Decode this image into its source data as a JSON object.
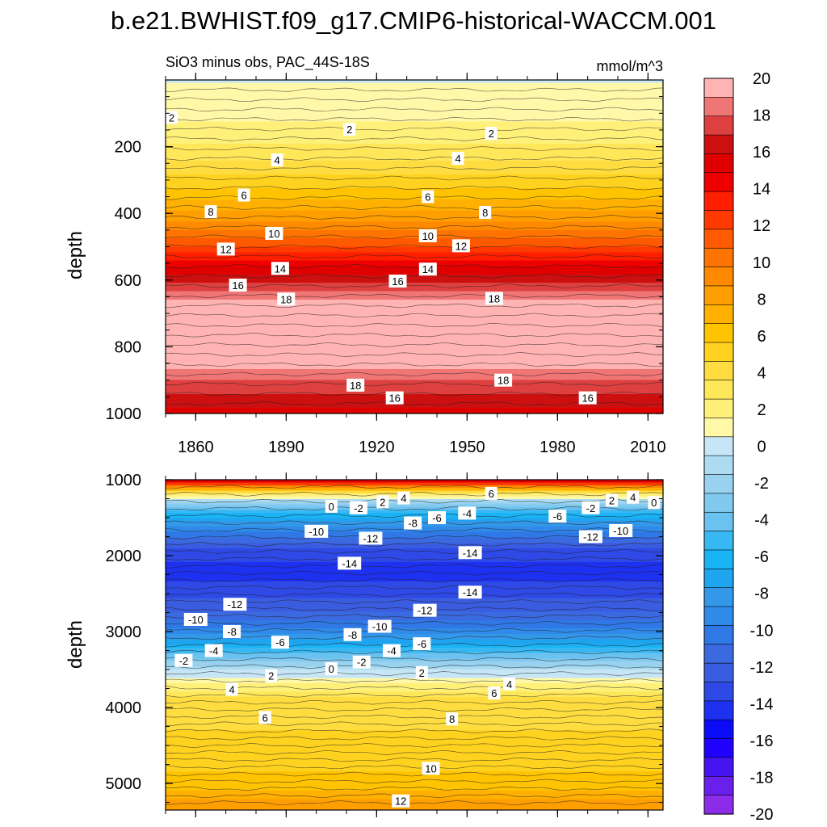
{
  "title": "b.e21.BWHIST.f09_g17.CMIP6-historical-WACCM.001",
  "subtitle_left": "SiO3 minus obs, PAC_44S-18S",
  "subtitle_right": "mmol/m^3",
  "chart_data": [
    {
      "type": "heatmap",
      "panel": "upper",
      "ylabel": "depth",
      "xlim": [
        1850,
        2015
      ],
      "ylim": [
        0,
        1000
      ],
      "y_inverted": true,
      "x_ticks": [
        1860,
        1890,
        1920,
        1950,
        1980,
        2010
      ],
      "x_tick_labels": [
        "1860",
        "1890",
        "1920",
        "1950",
        "1980",
        "2010"
      ],
      "y_ticks": [
        200,
        400,
        600,
        800,
        1000
      ],
      "y_tick_labels": [
        "200",
        "400",
        "600",
        "800",
        "1000"
      ],
      "depth_profile": [
        {
          "depth": 0,
          "value": 0.5
        },
        {
          "depth": 130,
          "value": 1.6
        },
        {
          "depth": 200,
          "value": 2.8
        },
        {
          "depth": 300,
          "value": 5
        },
        {
          "depth": 400,
          "value": 8
        },
        {
          "depth": 480,
          "value": 11
        },
        {
          "depth": 560,
          "value": 15
        },
        {
          "depth": 640,
          "value": 18.5
        },
        {
          "depth": 700,
          "value": 20.5
        },
        {
          "depth": 800,
          "value": 20.5
        },
        {
          "depth": 860,
          "value": 19
        },
        {
          "depth": 930,
          "value": 17
        },
        {
          "depth": 1000,
          "value": 15.5
        }
      ],
      "contour_labels": [
        {
          "text": "2",
          "year": 1852,
          "depth": 112
        },
        {
          "text": "2",
          "year": 1911,
          "depth": 148
        },
        {
          "text": "2",
          "year": 1958,
          "depth": 160
        },
        {
          "text": "4",
          "year": 1887,
          "depth": 240
        },
        {
          "text": "4",
          "year": 1947,
          "depth": 235
        },
        {
          "text": "6",
          "year": 1876,
          "depth": 345
        },
        {
          "text": "6",
          "year": 1937,
          "depth": 350
        },
        {
          "text": "8",
          "year": 1865,
          "depth": 395
        },
        {
          "text": "8",
          "year": 1956,
          "depth": 397
        },
        {
          "text": "10",
          "year": 1886,
          "depth": 460
        },
        {
          "text": "10",
          "year": 1937,
          "depth": 467
        },
        {
          "text": "12",
          "year": 1870,
          "depth": 507
        },
        {
          "text": "12",
          "year": 1948,
          "depth": 497
        },
        {
          "text": "14",
          "year": 1888,
          "depth": 565
        },
        {
          "text": "14",
          "year": 1937,
          "depth": 567
        },
        {
          "text": "16",
          "year": 1874,
          "depth": 615
        },
        {
          "text": "16",
          "year": 1927,
          "depth": 603
        },
        {
          "text": "18",
          "year": 1890,
          "depth": 657
        },
        {
          "text": "18",
          "year": 1959,
          "depth": 655
        },
        {
          "text": "18",
          "year": 1913,
          "depth": 915
        },
        {
          "text": "18",
          "year": 1962,
          "depth": 900
        },
        {
          "text": "16",
          "year": 1926,
          "depth": 953
        },
        {
          "text": "16",
          "year": 1990,
          "depth": 953
        }
      ]
    },
    {
      "type": "heatmap",
      "panel": "lower",
      "ylabel": "depth",
      "xlim": [
        1850,
        2015
      ],
      "ylim": [
        1000,
        5350
      ],
      "y_inverted": true,
      "y_ticks": [
        1000,
        2000,
        3000,
        4000,
        5000
      ],
      "y_tick_labels": [
        "1000",
        "2000",
        "3000",
        "4000",
        "5000"
      ],
      "depth_profile": [
        {
          "depth": 1000,
          "value": 15
        },
        {
          "depth": 1150,
          "value": 4
        },
        {
          "depth": 1300,
          "value": -3
        },
        {
          "depth": 1600,
          "value": -9
        },
        {
          "depth": 1850,
          "value": -12.5
        },
        {
          "depth": 2200,
          "value": -14.5
        },
        {
          "depth": 2700,
          "value": -12
        },
        {
          "depth": 3000,
          "value": -9
        },
        {
          "depth": 3300,
          "value": -4
        },
        {
          "depth": 3500,
          "value": -0.5
        },
        {
          "depth": 3700,
          "value": 2
        },
        {
          "depth": 3900,
          "value": 4
        },
        {
          "depth": 4500,
          "value": 5
        },
        {
          "depth": 5000,
          "value": 6
        },
        {
          "depth": 5350,
          "value": 9
        }
      ],
      "contour_labels": [
        {
          "text": "0",
          "year": 1905,
          "depth": 1350
        },
        {
          "text": "-2",
          "year": 1914,
          "depth": 1370
        },
        {
          "text": "2",
          "year": 1922,
          "depth": 1290
        },
        {
          "text": "4",
          "year": 1929,
          "depth": 1240
        },
        {
          "text": "-8",
          "year": 1932,
          "depth": 1570
        },
        {
          "text": "-6",
          "year": 1940,
          "depth": 1500
        },
        {
          "text": "-4",
          "year": 1950,
          "depth": 1440
        },
        {
          "text": "6",
          "year": 1958,
          "depth": 1180
        },
        {
          "text": "-6",
          "year": 1980,
          "depth": 1480
        },
        {
          "text": "-2",
          "year": 1991,
          "depth": 1370
        },
        {
          "text": "2",
          "year": 1998,
          "depth": 1270
        },
        {
          "text": "4",
          "year": 2005,
          "depth": 1230
        },
        {
          "text": "0",
          "year": 2012,
          "depth": 1300
        },
        {
          "text": "-10",
          "year": 1900,
          "depth": 1680
        },
        {
          "text": "-12",
          "year": 1918,
          "depth": 1770
        },
        {
          "text": "-12",
          "year": 1991,
          "depth": 1750
        },
        {
          "text": "-10",
          "year": 2001,
          "depth": 1670
        },
        {
          "text": "-14",
          "year": 1911,
          "depth": 2100
        },
        {
          "text": "-14",
          "year": 1951,
          "depth": 1960
        },
        {
          "text": "-14",
          "year": 1951,
          "depth": 2480
        },
        {
          "text": "-12",
          "year": 1873,
          "depth": 2640
        },
        {
          "text": "-12",
          "year": 1936,
          "depth": 2720
        },
        {
          "text": "-10",
          "year": 1860,
          "depth": 2840
        },
        {
          "text": "-10",
          "year": 1921,
          "depth": 2930
        },
        {
          "text": "-8",
          "year": 1872,
          "depth": 3000
        },
        {
          "text": "-8",
          "year": 1912,
          "depth": 3040
        },
        {
          "text": "-6",
          "year": 1888,
          "depth": 3140
        },
        {
          "text": "-6",
          "year": 1935,
          "depth": 3160
        },
        {
          "text": "-4",
          "year": 1866,
          "depth": 3250
        },
        {
          "text": "-4",
          "year": 1925,
          "depth": 3250
        },
        {
          "text": "-2",
          "year": 1856,
          "depth": 3380
        },
        {
          "text": "-2",
          "year": 1915,
          "depth": 3400
        },
        {
          "text": "0",
          "year": 1905,
          "depth": 3490
        },
        {
          "text": "2",
          "year": 1885,
          "depth": 3580
        },
        {
          "text": "2",
          "year": 1935,
          "depth": 3540
        },
        {
          "text": "4",
          "year": 1872,
          "depth": 3760
        },
        {
          "text": "4",
          "year": 1964,
          "depth": 3690
        },
        {
          "text": "6",
          "year": 1883,
          "depth": 4130
        },
        {
          "text": "6",
          "year": 1959,
          "depth": 3810
        },
        {
          "text": "8",
          "year": 1945,
          "depth": 4150
        },
        {
          "text": "10",
          "year": 1938,
          "depth": 4800
        },
        {
          "text": "12",
          "year": 1928,
          "depth": 5230
        }
      ]
    }
  ],
  "colorbar": {
    "tick_labels": [
      "20",
      "18",
      "16",
      "14",
      "12",
      "10",
      "8",
      "6",
      "4",
      "2",
      "0",
      "-2",
      "-4",
      "-6",
      "-8",
      "-10",
      "-12",
      "-14",
      "-16",
      "-18",
      "-20"
    ],
    "colors_top_to_bottom": [
      "#ffb3b3",
      "#f07575",
      "#de4040",
      "#cc1010",
      "#e00000",
      "#ee0000",
      "#ff1e00",
      "#ff3a00",
      "#ff5a00",
      "#ff7400",
      "#ff8a00",
      "#ff9e00",
      "#ffb000",
      "#ffc300",
      "#ffd21f",
      "#ffdd40",
      "#ffe75a",
      "#fff07a",
      "#fff8a8",
      "#c6e6f7",
      "#addcf2",
      "#98d2ef",
      "#82c9ee",
      "#6ac2f0",
      "#38b8f3",
      "#18b4f5",
      "#1fa4ef",
      "#3498ea",
      "#308aea",
      "#2f78e6",
      "#3b6ae0",
      "#3a5ce0",
      "#2e49e6",
      "#1e30f0",
      "#0a0cf8",
      "#2000ff",
      "#4514f0",
      "#6a20ec",
      "#8c2be8"
    ]
  }
}
